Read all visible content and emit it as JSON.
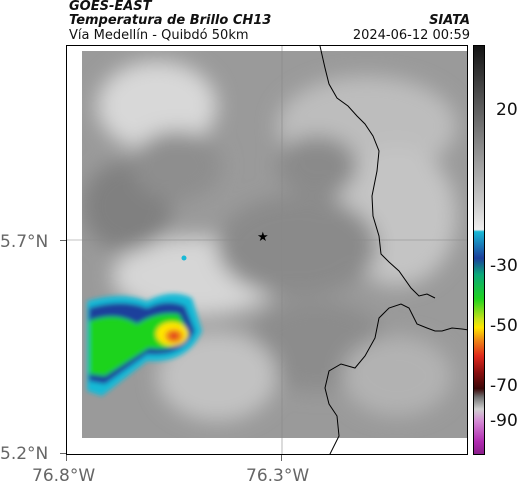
{
  "header": {
    "satellite": "GOES-EAST",
    "product": "Temperatura de Brillo CH13",
    "organization": "SIATA",
    "route": "Vía Medellín - Quibdó 50km",
    "timestamp": "2024-06-12 00:59"
  },
  "map": {
    "lat_ticks": [
      "5.7°N",
      "5.2°N"
    ],
    "lon_ticks": [
      "76.8°W",
      "76.3°W"
    ],
    "marker_icon": "star-icon",
    "colors": {
      "gray_dark": "#6e6e6e",
      "gray_light": "#dcdcdc",
      "cloud_cyan": "#19b9d6",
      "cloud_blue": "#1c3f9c",
      "cloud_green": "#1fd31f",
      "cloud_yellow": "#ffe600",
      "cloud_red": "#e0291c"
    }
  },
  "colorbar": {
    "ticks": [
      "20",
      "-30",
      "-50",
      "-70",
      "-90"
    ]
  }
}
